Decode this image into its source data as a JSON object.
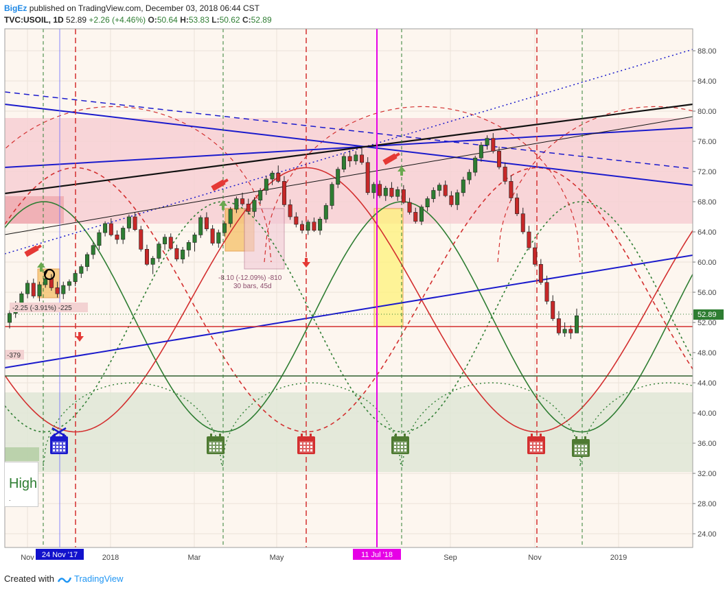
{
  "header": {
    "author": "BigEz",
    "published": "published on TradingView.com, December 03, 2018 06:44 CST",
    "symbol": "TVC:USOIL, 1D",
    "last": "52.89",
    "change": "+2.26 (+4.46%)",
    "ohlc": [
      {
        "k": "O:",
        "v": "50.64"
      },
      {
        "k": "H:",
        "v": "53.83"
      },
      {
        "k": "L:",
        "v": "50.62"
      },
      {
        "k": "C:",
        "v": "52.89"
      }
    ]
  },
  "footer": {
    "created_with": "Created with",
    "brand": "TradingView"
  },
  "legend": {
    "text": "High",
    "sub": "."
  },
  "colors": {
    "up": "#2e7d32",
    "down": "#c62828",
    "bg": "#fdf6ef",
    "pink_zone": "#f7cfd4",
    "green_zone": "#dfe6d6",
    "blue_line": "#1a1acc",
    "magenta": "#e600e6"
  },
  "chart_data": {
    "type": "candlestick",
    "y_axis_labels": [
      "88.00",
      "84.00",
      "80.00",
      "76.00",
      "72.00",
      "68.00",
      "64.00",
      "60.00",
      "56.00",
      "52.00",
      "48.00",
      "44.00",
      "40.00",
      "36.00",
      "32.00",
      "28.00",
      "24.00"
    ],
    "ylim": [
      21,
      90
    ],
    "x_axis_labels": [
      "Nov",
      "24 Nov '17",
      "2018",
      "Mar",
      "May",
      "11 Jul '18",
      "Sep",
      "Nov",
      "2019"
    ],
    "price_label": "52.89",
    "annotations": [
      {
        "text": "-2.25 (-3.91%) -225"
      },
      {
        "text": "-379"
      },
      {
        "text": "-8.10 (-12.09%) -810"
      },
      {
        "text": "30 bars, 45d"
      }
    ],
    "candles": [
      [
        52,
        53.6,
        51.2,
        53.2
      ],
      [
        53.2,
        54.8,
        52.6,
        54.3
      ],
      [
        54.3,
        56.1,
        53.9,
        55.8
      ],
      [
        55.8,
        57.6,
        55.2,
        57.2
      ],
      [
        57.2,
        57.8,
        55.2,
        55.5
      ],
      [
        55.5,
        57.4,
        54.8,
        57
      ],
      [
        57,
        58.3,
        56.6,
        57.8
      ],
      [
        57.8,
        58.4,
        56.2,
        56.6
      ],
      [
        56.6,
        57.4,
        55.3,
        55.8
      ],
      [
        55.8,
        57.4,
        55.1,
        56.9
      ],
      [
        56.9,
        57.7,
        56.2,
        57.4
      ],
      [
        57.4,
        58.8,
        56.8,
        58.5
      ],
      [
        58.5,
        59.7,
        57.9,
        59.4
      ],
      [
        59.4,
        61.3,
        58.8,
        61
      ],
      [
        61,
        62.6,
        60.4,
        62.2
      ],
      [
        62.2,
        64.3,
        61.6,
        63.9
      ],
      [
        63.9,
        65.4,
        63.4,
        65.1
      ],
      [
        65.1,
        65.8,
        63.4,
        63.6
      ],
      [
        63.6,
        64.2,
        62.4,
        63
      ],
      [
        63,
        64.8,
        62.4,
        64.5
      ],
      [
        64.5,
        66.3,
        64,
        66
      ],
      [
        66,
        66.6,
        64.1,
        64.3
      ],
      [
        64.3,
        64.8,
        61.4,
        61.7
      ],
      [
        61.7,
        62.3,
        59.5,
        59.7
      ],
      [
        59.7,
        60.8,
        58.4,
        60.5
      ],
      [
        60.5,
        62.7,
        60,
        62.4
      ],
      [
        62.4,
        63.7,
        61.6,
        63.3
      ],
      [
        63.3,
        63.8,
        61.6,
        61.8
      ],
      [
        61.8,
        62.3,
        60.1,
        60.4
      ],
      [
        60.4,
        62,
        59.8,
        61.6
      ],
      [
        61.6,
        62.9,
        60.7,
        62.6
      ],
      [
        62.6,
        63.9,
        61.4,
        63.6
      ],
      [
        63.6,
        66.2,
        63.2,
        65.9
      ],
      [
        65.9,
        66.6,
        64.1,
        64.4
      ],
      [
        64.4,
        64.9,
        62.2,
        62.5
      ],
      [
        62.5,
        64.3,
        61.9,
        63.9
      ],
      [
        63.9,
        65.4,
        63.4,
        65.1
      ],
      [
        65.1,
        67.3,
        64.6,
        67
      ],
      [
        67,
        68.7,
        66.5,
        68.4
      ],
      [
        68.4,
        69.2,
        67.4,
        67.7
      ],
      [
        67.7,
        68.4,
        66.3,
        66.7
      ],
      [
        66.7,
        68.6,
        66,
        68.2
      ],
      [
        68.2,
        69.8,
        67.7,
        69.5
      ],
      [
        69.5,
        71.4,
        68.9,
        71
      ],
      [
        71,
        72.1,
        70.2,
        71.8
      ],
      [
        71.8,
        72.8,
        70.5,
        70.7
      ],
      [
        70.7,
        71.4,
        67.3,
        67.6
      ],
      [
        67.6,
        68.3,
        65.6,
        66
      ],
      [
        66,
        66.6,
        64.6,
        65
      ],
      [
        65,
        65.5,
        63.8,
        64.2
      ],
      [
        64.2,
        65.6,
        63.6,
        65.3
      ],
      [
        65.3,
        65.9,
        64,
        64.2
      ],
      [
        64.2,
        66,
        63.6,
        65.7
      ],
      [
        65.7,
        67.8,
        65.2,
        67.5
      ],
      [
        67.5,
        70.6,
        67,
        70.3
      ],
      [
        70.3,
        72.6,
        69.8,
        72.3
      ],
      [
        72.3,
        74.4,
        71.9,
        74
      ],
      [
        74,
        74.8,
        72.6,
        73.4
      ],
      [
        73.4,
        74.7,
        72.9,
        74.2
      ],
      [
        74.2,
        75.2,
        72.9,
        73.2
      ],
      [
        73.2,
        73.9,
        68.9,
        69.2
      ],
      [
        69.2,
        70.6,
        68.4,
        70.3
      ],
      [
        70.3,
        70.8,
        68.5,
        68.8
      ],
      [
        68.8,
        70.1,
        68.1,
        69.8
      ],
      [
        69.8,
        70.6,
        68.5,
        68.7
      ],
      [
        68.7,
        70,
        68.1,
        69.6
      ],
      [
        69.6,
        70.2,
        67.7,
        67.9
      ],
      [
        67.9,
        68.5,
        66.3,
        66.6
      ],
      [
        66.6,
        67.2,
        65.1,
        65.4
      ],
      [
        65.4,
        67.6,
        64.9,
        67.3
      ],
      [
        67.3,
        68.7,
        66.7,
        68.4
      ],
      [
        68.4,
        69.9,
        67.9,
        69.5
      ],
      [
        69.5,
        70.5,
        68.7,
        70.2
      ],
      [
        70.2,
        70.8,
        68.6,
        68.8
      ],
      [
        68.8,
        69.4,
        67.3,
        67.6
      ],
      [
        67.6,
        69.6,
        66.9,
        69.2
      ],
      [
        69.2,
        71.3,
        68.7,
        70.9
      ],
      [
        70.9,
        72.3,
        70.3,
        71.9
      ],
      [
        71.9,
        74.1,
        71.4,
        73.8
      ],
      [
        73.8,
        75.9,
        73.3,
        75.5
      ],
      [
        75.5,
        76.8,
        74.9,
        76.4
      ],
      [
        76.4,
        77.1,
        74.4,
        74.7
      ],
      [
        74.7,
        75.3,
        72.3,
        72.6
      ],
      [
        72.6,
        73.2,
        70.3,
        70.7
      ],
      [
        70.7,
        71.5,
        68.1,
        68.5
      ],
      [
        68.5,
        69.1,
        66.1,
        66.4
      ],
      [
        66.4,
        67.2,
        63.7,
        64
      ],
      [
        64,
        64.8,
        61.6,
        61.9
      ],
      [
        61.9,
        62.6,
        59.4,
        59.7
      ],
      [
        59.7,
        60.4,
        57,
        57.3
      ],
      [
        57.3,
        58.2,
        54.4,
        54.8
      ],
      [
        54.8,
        55.6,
        52.2,
        52.5
      ],
      [
        52.5,
        53.5,
        50.3,
        50.6
      ],
      [
        50.6,
        52,
        50.1,
        51.1
      ],
      [
        51.1,
        51.6,
        49.8,
        50.6
      ],
      [
        50.6,
        53.83,
        50.62,
        52.89
      ]
    ]
  }
}
